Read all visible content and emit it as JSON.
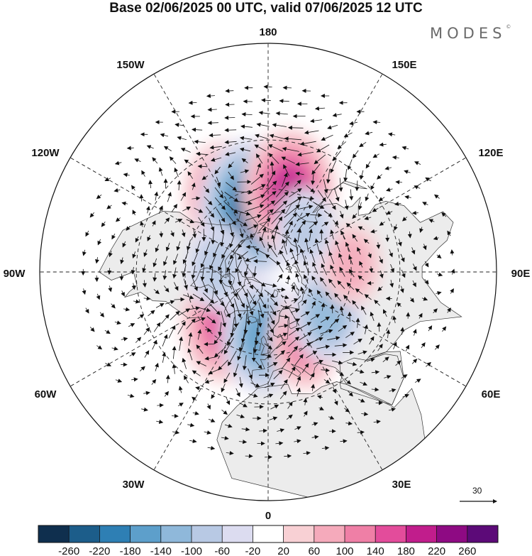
{
  "header": {
    "title": "Base 02/06/2025 00 UTC, valid 07/06/2025 12 UTC",
    "brand": "MODES",
    "brand_mark": "©"
  },
  "map": {
    "projection": "north-polar-stereographic",
    "meridian_labels": [
      {
        "text": "180",
        "lon": 180
      },
      {
        "text": "150E",
        "lon": 150
      },
      {
        "text": "120E",
        "lon": 120
      },
      {
        "text": "90E",
        "lon": 90
      },
      {
        "text": "60E",
        "lon": 60
      },
      {
        "text": "30E",
        "lon": 30
      },
      {
        "text": "0",
        "lon": 0
      },
      {
        "text": "30W",
        "lon": -30
      },
      {
        "text": "60W",
        "lon": -60
      },
      {
        "text": "90W",
        "lon": -90
      },
      {
        "text": "120W",
        "lon": -120
      },
      {
        "text": "150W",
        "lon": -150
      }
    ],
    "latitude_circles": [
      70,
      50,
      30
    ],
    "colors": {
      "land": "#ececec",
      "ocean": "#ffffff",
      "coast": "#333333",
      "grid": "#222222"
    },
    "anomaly_centers": [
      {
        "name": "high-north-pacific-east",
        "lon": -150,
        "lat": 48,
        "value": 150
      },
      {
        "name": "low-alaska",
        "lon": -165,
        "lat": 58,
        "value": -230
      },
      {
        "name": "high-north-pacific-west",
        "lon": 165,
        "lat": 50,
        "value": 190
      },
      {
        "name": "high-greenland",
        "lon": -40,
        "lat": 57,
        "value": 170
      },
      {
        "name": "low-iceland-uk",
        "lon": -5,
        "lat": 58,
        "value": -150
      },
      {
        "name": "high-europe",
        "lon": 28,
        "lat": 52,
        "value": 110
      },
      {
        "name": "low-west-siberia",
        "lon": 55,
        "lat": 55,
        "value": -110
      },
      {
        "name": "high-central-siberia",
        "lon": 95,
        "lat": 50,
        "value": 70
      },
      {
        "name": "low-east-siberia",
        "lon": 140,
        "lat": 62,
        "value": -60
      },
      {
        "name": "low-canada",
        "lon": -95,
        "lat": 65,
        "value": -80
      }
    ],
    "vector_reference": {
      "label": "30"
    }
  },
  "colorbar": {
    "ticks": [
      "-260",
      "-220",
      "-180",
      "-140",
      "-100",
      "-60",
      "-20",
      "20",
      "60",
      "100",
      "140",
      "180",
      "220",
      "260"
    ],
    "colors": [
      "#0f2f4e",
      "#1c5d8a",
      "#2e7fb4",
      "#5d9fcb",
      "#8fb8da",
      "#b8c9e4",
      "#dcdcf0",
      "#ffffff",
      "#f8d0d4",
      "#f5aabb",
      "#ef7fa6",
      "#e34c9b",
      "#c11d8c",
      "#8e0a83",
      "#5c0a78"
    ]
  }
}
